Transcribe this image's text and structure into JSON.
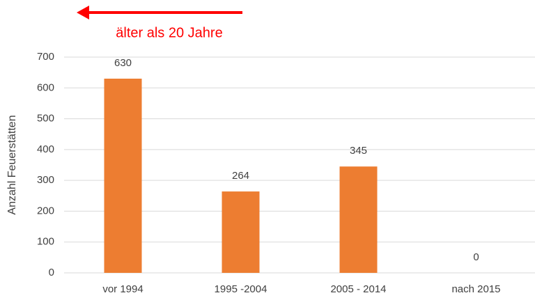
{
  "chart_data": {
    "type": "bar",
    "annotation": "älter als 20 Jahre",
    "ylabel": "Anzahl Feuerstätten",
    "categories": [
      "vor 1994",
      "1995 -2004",
      "2005 - 2014",
      "nach 2015"
    ],
    "values": [
      630,
      264,
      345,
      0
    ],
    "color": "#ed7d31",
    "ylim": [
      0,
      700
    ],
    "yticks": [
      0,
      100,
      200,
      300,
      400,
      500,
      600,
      700
    ],
    "grid": true
  }
}
